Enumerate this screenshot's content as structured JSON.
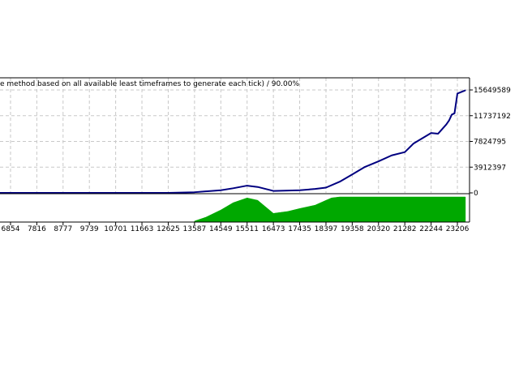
{
  "chart_data": {
    "type": "line",
    "title": "e method based on all available least timeframes to generate each tick) / 90.00%",
    "main_panel": {
      "y_ticks": [
        "15649589",
        "11737192",
        "7824795",
        "3912397",
        "0"
      ],
      "ylim": [
        0,
        15649589
      ],
      "grid": true,
      "series": [
        {
          "x": [
            5400,
            6854,
            7816,
            8777,
            9739,
            10701,
            11663,
            12625,
            13587,
            14549,
            15000,
            15511,
            15900,
            16473,
            17435,
            18000,
            18397,
            18900,
            19358,
            19800,
            20320,
            20800,
            21282,
            21600,
            22244,
            22500,
            22800,
            22900,
            23000,
            23100,
            23206,
            23500
          ],
          "y": [
            0,
            0,
            0,
            0,
            0,
            0,
            0,
            0,
            100000,
            400000,
            700000,
            1100000,
            900000,
            300000,
            400000,
            600000,
            800000,
            1700000,
            2800000,
            3900000,
            4800000,
            5700000,
            6200000,
            7500000,
            9100000,
            9000000,
            10400000,
            11000000,
            11900000,
            12100000,
            15100000,
            15600000
          ]
        }
      ]
    },
    "volume_panel": {
      "type": "area",
      "color": "#00a800",
      "x": [
        13587,
        14000,
        14549,
        15000,
        15511,
        15900,
        16473,
        17000,
        17435,
        18000,
        18397,
        18600,
        18900,
        19358,
        20320,
        21282,
        22244,
        23206,
        23500
      ],
      "values": [
        2,
        10,
        25,
        40,
        50,
        45,
        18,
        22,
        28,
        35,
        45,
        50,
        52,
        52,
        52,
        52,
        52,
        52,
        52
      ]
    },
    "x_ticks": [
      "6854",
      "7816",
      "8777",
      "9739",
      "10701",
      "11663",
      "12625",
      "13587",
      "14549",
      "15511",
      "16473",
      "17435",
      "18397",
      "19358",
      "20320",
      "21282",
      "22244",
      "23206"
    ],
    "x_tick_values": [
      6854,
      7816,
      8777,
      9739,
      10701,
      11663,
      12625,
      13587,
      14549,
      15511,
      16473,
      17435,
      18397,
      19358,
      20320,
      21282,
      22244,
      23206
    ],
    "xlim": [
      6469,
      23650
    ],
    "colors": {
      "line": "#000080",
      "volume": "#00a800",
      "grid": "#c8c8c8",
      "axis": "#000000"
    }
  }
}
